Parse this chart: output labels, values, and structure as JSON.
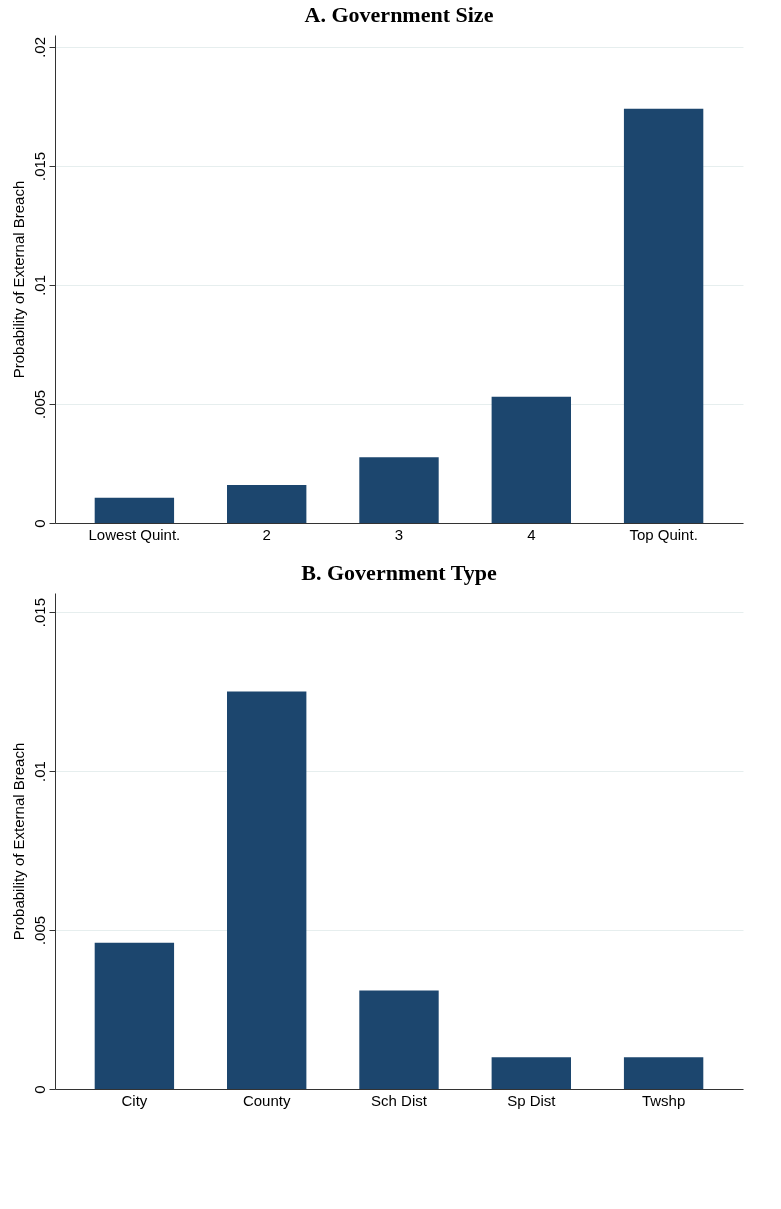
{
  "chart_data": [
    {
      "type": "bar",
      "title": "A. Government Size",
      "ylabel": "Probability of External Breach",
      "categories": [
        "Lowest Quint.",
        "2",
        "3",
        "4",
        "Top Quint."
      ],
      "values": [
        0.00106,
        0.0016,
        0.00276,
        0.0053,
        0.0174
      ],
      "color": "#1c466e",
      "ylim": [
        0,
        0.0205
      ],
      "yticks": [
        0,
        {
          "value": 0.005,
          "label": ".005"
        },
        {
          "value": 0.01,
          "label": ".01"
        },
        {
          "value": 0.015,
          "label": ".015"
        },
        {
          "value": 0.02,
          "label": ".02"
        }
      ],
      "grid": "y"
    },
    {
      "type": "bar",
      "title": "B. Government Type",
      "ylabel": "Probability of External Breach",
      "categories": [
        "City",
        "County",
        "Sch Dist",
        "Sp Dist",
        "Twshp"
      ],
      "values": [
        0.0046,
        0.0125,
        0.0031,
        0.001,
        0.001
      ],
      "color": "#1c466e",
      "ylim": [
        0,
        0.0156
      ],
      "yticks": [
        0,
        {
          "value": 0.005,
          "label": ".005"
        },
        {
          "value": 0.01,
          "label": ".01"
        },
        {
          "value": 0.015,
          "label": ".015"
        }
      ],
      "grid": "y"
    }
  ]
}
